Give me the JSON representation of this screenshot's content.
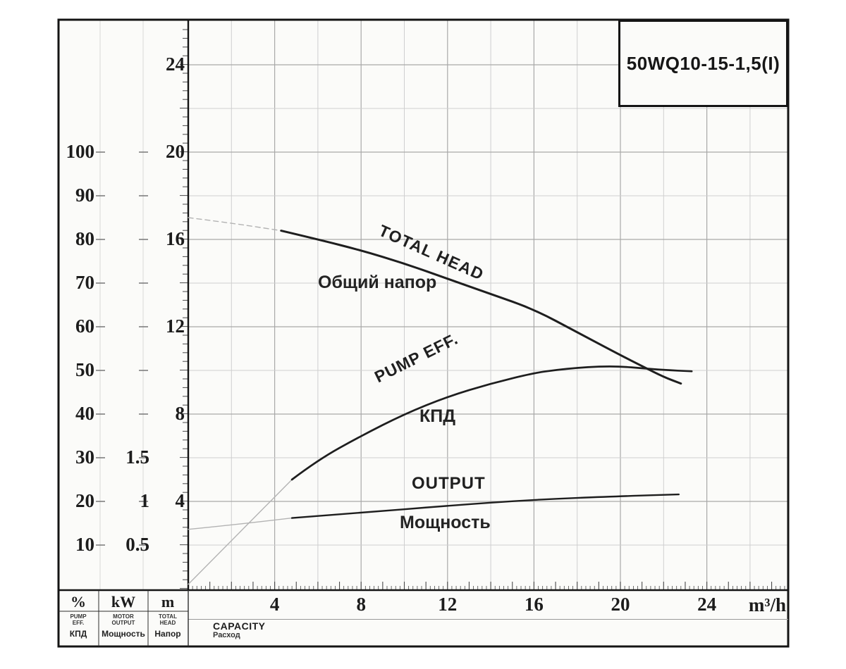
{
  "title_box": {
    "model": "50WQ10-15-1,5(I)"
  },
  "colors": {
    "frame": "#141414",
    "curve": "#1e1e1e",
    "curve_faint": "#b3b3b3",
    "grid_minor": "#cfcfcf",
    "grid_major": "#a9a9a9",
    "scale_line": "#d8d8d8",
    "figure_bg": "#fbfbf9",
    "text": "#1c1c1c"
  },
  "axes": {
    "x": {
      "label_en": "CAPACITY",
      "label_ru": "Расход",
      "unit": "m³/h",
      "ticks": [
        4,
        8,
        12,
        16,
        20,
        24
      ]
    },
    "head_m": {
      "unit": "m",
      "ticks": [
        24,
        20,
        16,
        12,
        8,
        4
      ]
    },
    "eff_pct": {
      "unit": "%",
      "ticks": [
        100,
        90,
        80,
        70,
        60,
        50,
        40,
        30,
        20,
        10
      ]
    },
    "power_kw": {
      "unit": "kW",
      "ticks": [
        1.5,
        1,
        0.5
      ]
    }
  },
  "curve_labels": {
    "head_en": "TOTAL HEAD",
    "head_ru": "Общий напор",
    "eff_en": "PUMP EFF.",
    "eff_ru": "КПД",
    "power_en": "OUTPUT",
    "power_ru": "Мощность"
  },
  "legend_table": {
    "columns": [
      {
        "unit": "%",
        "en_lines": [
          "PUMP",
          "EFF."
        ],
        "ru": "КПД"
      },
      {
        "unit": "kW",
        "en_lines": [
          "MOTOR",
          "OUTPUT"
        ],
        "ru": "Мощность"
      },
      {
        "unit": "m",
        "en_lines": [
          "TOTAL",
          "HEAD"
        ],
        "ru": "Напор"
      }
    ]
  },
  "chart_data": {
    "type": "line",
    "title": "50WQ10-15-1,5(I)",
    "xlabel": "CAPACITY (m³/h)",
    "x_range": [
      0,
      27.8
    ],
    "grid": true,
    "series": [
      {
        "name": "TOTAL HEAD / Общий напор",
        "unit": "m",
        "axis_ticks": [
          4,
          8,
          12,
          16,
          20,
          24
        ],
        "x": [
          0,
          2,
          4,
          4.3,
          6,
          8,
          10,
          12,
          14,
          16,
          18,
          20,
          21,
          22,
          22.8
        ],
        "y": [
          17.0,
          16.75,
          16.45,
          16.4,
          16.0,
          15.5,
          14.9,
          14.2,
          13.5,
          12.8,
          11.75,
          10.7,
          10.2,
          9.7,
          9.4
        ],
        "solid_from_x": 4.3,
        "faint_dashed": true
      },
      {
        "name": "PUMP EFF. / КПД",
        "unit": "%",
        "axis_ticks": [
          10,
          20,
          30,
          40,
          50,
          60,
          70,
          80,
          90,
          100
        ],
        "x": [
          0,
          1,
          2,
          3,
          4,
          4.8,
          6,
          8,
          10,
          12,
          14,
          16,
          17,
          18,
          19,
          20,
          21,
          22,
          23.3
        ],
        "y": [
          1,
          6,
          11,
          16,
          21,
          25,
          29.5,
          35,
          40,
          44,
          47,
          49.4,
          50.1,
          50.6,
          50.9,
          50.9,
          50.5,
          50.1,
          49.8
        ],
        "solid_from_x": 4.8,
        "faint_dashed": false
      },
      {
        "name": "OUTPUT / Мощность",
        "unit": "kW",
        "axis_ticks": [
          0.5,
          1,
          1.5
        ],
        "x": [
          0,
          2,
          4.8,
          8,
          12,
          16,
          20,
          22.7
        ],
        "y": [
          0.68,
          0.73,
          0.81,
          0.87,
          0.95,
          1.02,
          1.06,
          1.08
        ],
        "solid_from_x": 4.8,
        "faint_dashed": false
      }
    ]
  }
}
